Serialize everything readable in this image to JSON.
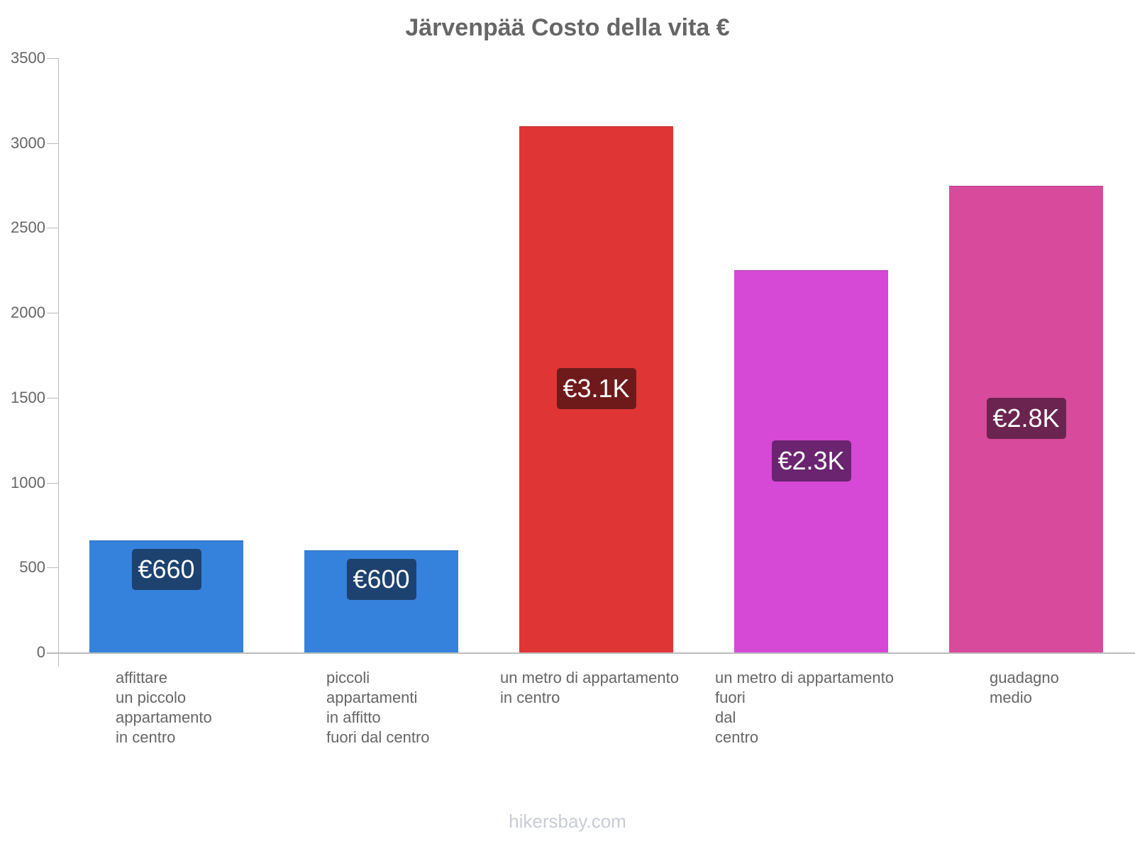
{
  "chart_data": {
    "type": "bar",
    "title": "Järvenpää Costo della vita €",
    "xlabel": "",
    "ylabel": "",
    "ylim": [
      0,
      3500
    ],
    "yticks": [
      "0",
      "500",
      "1000",
      "1500",
      "2000",
      "2500",
      "3000",
      "3500"
    ],
    "categories": [
      "affittare\nun piccolo\nappartamento\nin centro",
      "piccoli\nappartamenti\nin affitto\nfuori dal centro",
      "un metro di appartamento\nin centro",
      "un metro di appartamento\nfuori\ndal\ncentro",
      "guadagno\nmedio"
    ],
    "values": [
      660,
      600,
      3100,
      2250,
      2750
    ],
    "value_labels": [
      "€660",
      "€600",
      "€3.1K",
      "€2.3K",
      "€2.8K"
    ],
    "colors": [
      "#3582dc",
      "#3582dc",
      "#e03535",
      "#d648d6",
      "#d84a9c"
    ],
    "label_colors": [
      "#1d4270",
      "#1d4270",
      "#6e1a1a",
      "#6b2470",
      "#6b2450"
    ],
    "grid": false,
    "legend": "none"
  },
  "footer": "hikersbay.com"
}
